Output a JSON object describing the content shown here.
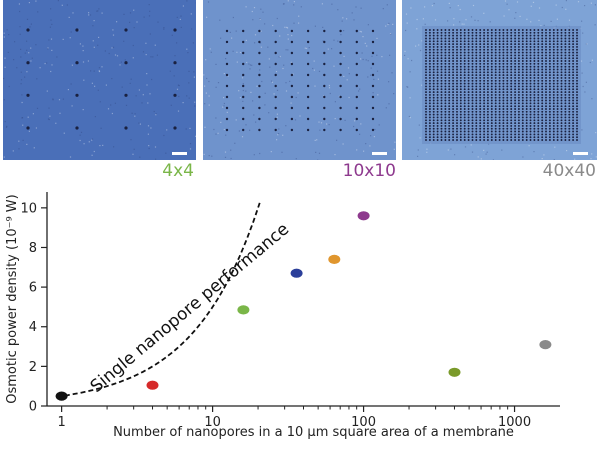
{
  "panels": [
    {
      "label": "4x4",
      "label_color": "#7ab648",
      "bg": "#4a6fb8",
      "dots": 4
    },
    {
      "label": "10x10",
      "label_color": "#8e3a8e",
      "bg": "#6f93cc",
      "dots": 10
    },
    {
      "label": "40x40",
      "label_color": "#8a8a8a",
      "bg": "#7ea3d6",
      "dots": 40
    }
  ],
  "chart_data": {
    "type": "scatter",
    "xscale": "log",
    "xlim": [
      0.8,
      2000
    ],
    "ylim": [
      0,
      10.8
    ],
    "xticks": [
      "1",
      "10",
      "100",
      "1000"
    ],
    "yticks": [
      "0",
      "2",
      "4",
      "6",
      "8",
      "10"
    ],
    "xlabel": "Number of nanopores in a 10 µm square area of a membrane",
    "ylabel": "Osmotic power density (10⁻⁹ W)",
    "points": [
      {
        "x": 1,
        "y": 0.5,
        "color": "#111111"
      },
      {
        "x": 4,
        "y": 1.05,
        "color": "#d62a2a"
      },
      {
        "x": 16,
        "y": 4.85,
        "color": "#7ab648"
      },
      {
        "x": 36,
        "y": 6.7,
        "color": "#2b3f9a"
      },
      {
        "x": 64,
        "y": 7.4,
        "color": "#e0962e"
      },
      {
        "x": 100,
        "y": 9.6,
        "color": "#8e3a8e"
      },
      {
        "x": 400,
        "y": 1.7,
        "color": "#7a9a2a"
      },
      {
        "x": 1600,
        "y": 3.1,
        "color": "#8a8a8a"
      }
    ],
    "curve_label": "Single nanopore performance"
  }
}
